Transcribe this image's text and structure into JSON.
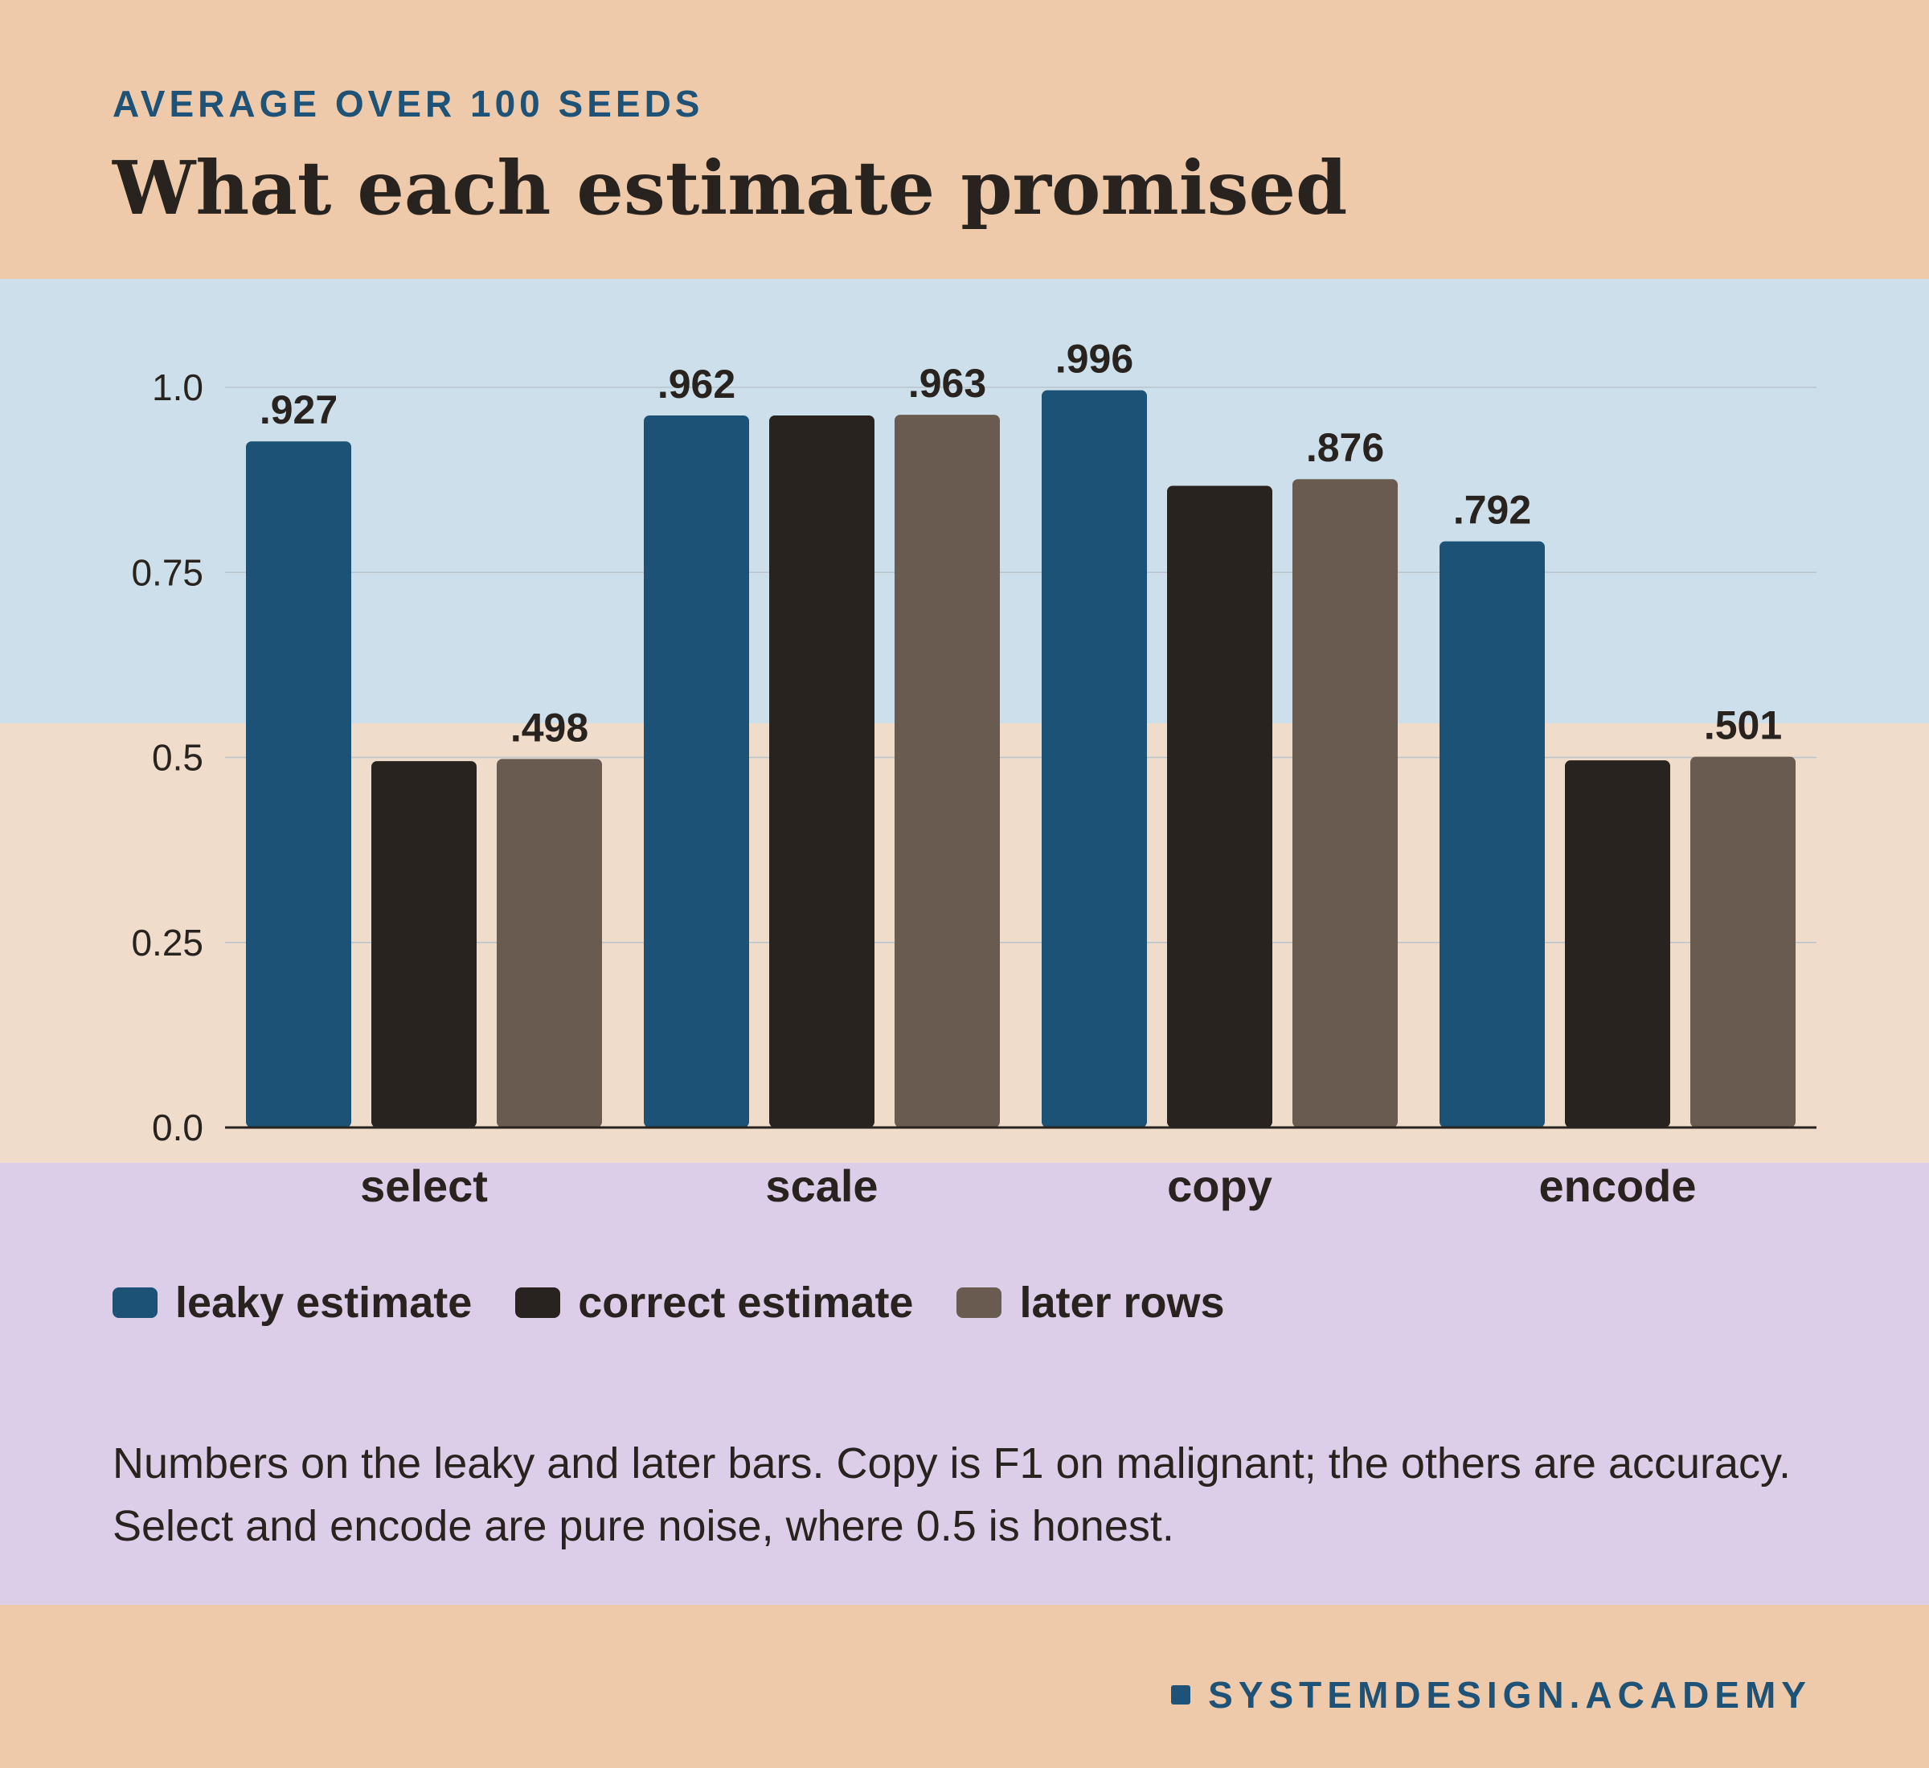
{
  "header": {
    "kicker": "AVERAGE OVER 100 SEEDS",
    "title": "What each estimate promised"
  },
  "colors": {
    "leaky": "#1b5275",
    "correct": "#29231f",
    "later": "#6a5b50",
    "band_blue": "#cddfea",
    "band_sand": "#efdccb",
    "band_lilac": "#dccee8",
    "page": "#eecaab"
  },
  "chart_data": {
    "type": "bar",
    "categories": [
      "select",
      "scale",
      "copy",
      "encode"
    ],
    "series": [
      {
        "name": "leaky estimate",
        "values": [
          0.927,
          0.962,
          0.996,
          0.792
        ],
        "labels": [
          ".927",
          ".962",
          ".996",
          ".792"
        ]
      },
      {
        "name": "correct estimate",
        "values": [
          0.495,
          0.962,
          0.867,
          0.496
        ],
        "labels": [
          "",
          "",
          "",
          ""
        ]
      },
      {
        "name": "later rows",
        "values": [
          0.498,
          0.963,
          0.876,
          0.501
        ],
        "labels": [
          ".498",
          ".963",
          ".876",
          ".501"
        ]
      }
    ],
    "yticks": [
      "0.0",
      "0.25",
      "0.5",
      "0.75",
      "1.0"
    ],
    "ytick_values": [
      0,
      0.25,
      0.5,
      0.75,
      1.0
    ],
    "ylim": [
      0,
      1.0
    ],
    "grid": true,
    "legend_position": "bottom-left"
  },
  "note": "Numbers on the leaky and later bars. Copy is F1 on malignant; the others are accuracy. Select and encode are pure noise, where 0.5 is honest.",
  "footer": {
    "brand": "SYSTEMDESIGN.ACADEMY"
  }
}
